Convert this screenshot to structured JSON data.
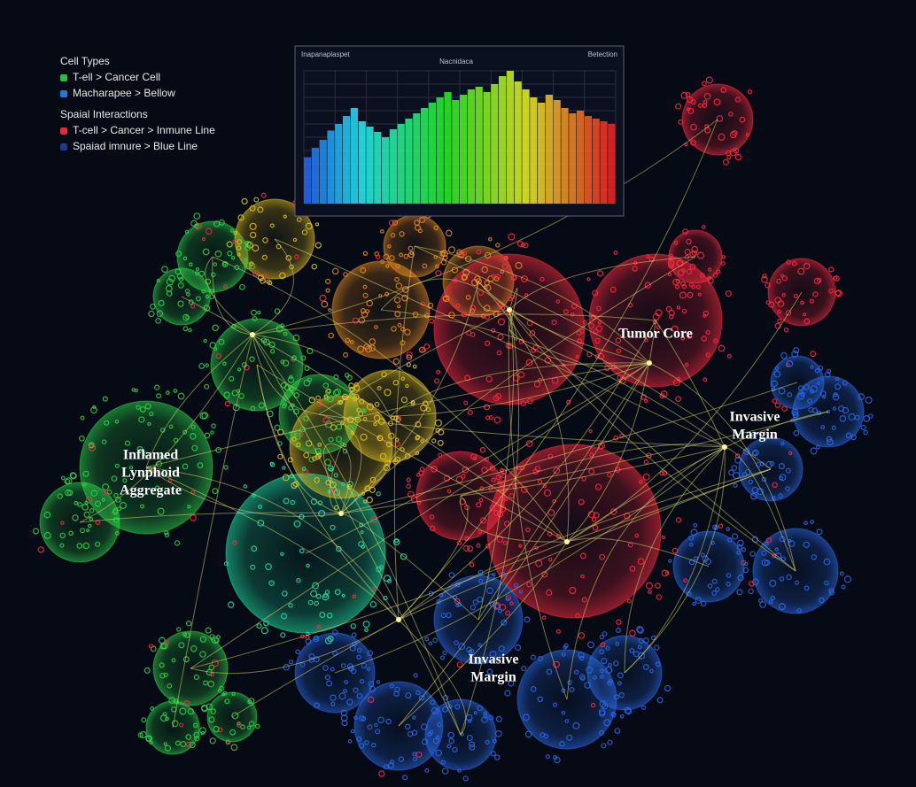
{
  "legend": {
    "cell_types_title": "Cell Types",
    "cell_types": [
      {
        "label": "T-ell > Cancer Cell",
        "color": "#22c33a"
      },
      {
        "label": "Macharapee > Bellow",
        "color": "#1f7ad6"
      }
    ],
    "interactions_title": "Spaial Interactions",
    "interactions": [
      {
        "label": "T-cell > Cancer > Inmune Line",
        "color": "#e8283a"
      },
      {
        "label": "Spaiad imnure > Blue Line",
        "color": "#1c3a8a"
      }
    ]
  },
  "histogram": {
    "left_label": "Inapanaplaspet",
    "center_label": "Nacnidaca",
    "right_label": "Betection",
    "ylim": [
      0,
      100
    ],
    "values": [
      35,
      42,
      48,
      55,
      60,
      66,
      72,
      62,
      58,
      54,
      50,
      56,
      60,
      64,
      68,
      72,
      76,
      80,
      84,
      78,
      82,
      86,
      88,
      84,
      90,
      96,
      100,
      92,
      86,
      80,
      76,
      82,
      78,
      72,
      68,
      70,
      66,
      64,
      62,
      60
    ]
  },
  "regions": [
    {
      "lines": [
        "Inflamed",
        "Lynphoid",
        "Aggregate"
      ]
    },
    {
      "lines": [
        "Tumor Core"
      ]
    },
    {
      "lines": [
        "Invasive",
        "Margin"
      ]
    },
    {
      "lines": [
        "Invasive",
        "Margin"
      ]
    }
  ]
}
